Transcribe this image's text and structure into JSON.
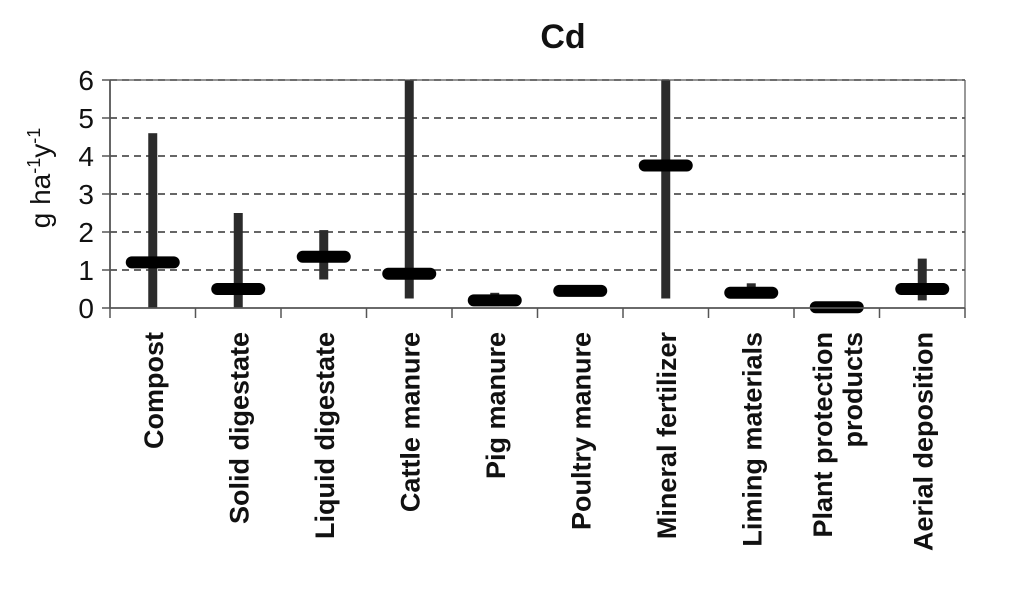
{
  "chart_data": {
    "type": "range-bar",
    "title": "Cd",
    "ylabel": "g ha-1y-1",
    "ylabel_parts": {
      "base1": "g ha",
      "sup1": "-1",
      "base2": "y",
      "sup2": "-1"
    },
    "ylim": [
      0,
      6
    ],
    "yticks": [
      "0",
      "1",
      "2",
      "3",
      "4",
      "5",
      "6"
    ],
    "grid": "horizontal-dashed",
    "categories": [
      [
        "Compost"
      ],
      [
        "Solid digestate"
      ],
      [
        "Liquid digestate"
      ],
      [
        "Cattle manure"
      ],
      [
        "Pig manure"
      ],
      [
        "Poultry manure"
      ],
      [
        "Mineral fertilizer"
      ],
      [
        "Liming materials"
      ],
      [
        "Plant protection",
        "products"
      ],
      [
        "Aerial deposition"
      ]
    ],
    "series": [
      {
        "min": 0.0,
        "max": 4.6,
        "median": 1.2
      },
      {
        "min": 0.0,
        "max": 2.5,
        "median": 0.5
      },
      {
        "min": 0.75,
        "max": 2.05,
        "median": 1.35
      },
      {
        "min": 0.25,
        "max": 6.0,
        "median": 0.9
      },
      {
        "min": 0.05,
        "max": 0.4,
        "median": 0.2
      },
      {
        "min": 0.4,
        "max": 0.5,
        "median": 0.45
      },
      {
        "min": 0.25,
        "max": 6.0,
        "median": 3.75
      },
      {
        "min": 0.25,
        "max": 0.65,
        "median": 0.4
      },
      {
        "min": 0.0,
        "max": 0.05,
        "median": 0.02
      },
      {
        "min": 0.2,
        "max": 1.3,
        "median": 0.5
      }
    ],
    "colors": {
      "range": "#2b2b2b",
      "median": "#000000",
      "axis": "#555555",
      "grid": "#333333"
    }
  }
}
